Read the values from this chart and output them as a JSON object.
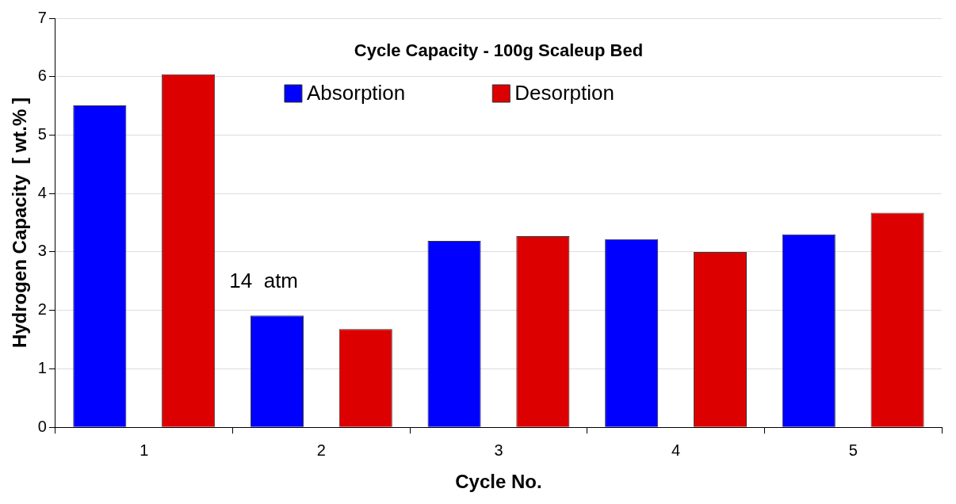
{
  "chart_data": {
    "type": "bar",
    "title": "Cycle Capacity - 100g Scaleup Bed",
    "xlabel": "Cycle No.",
    "ylabel": "Hydrogen Capacity  [ wt.% ]",
    "categories": [
      "1",
      "2",
      "3",
      "4",
      "5"
    ],
    "series": [
      {
        "name": "Absorption",
        "color": "#0000ff",
        "values": [
          5.51,
          1.91,
          3.19,
          3.22,
          3.3
        ]
      },
      {
        "name": "Desorption",
        "color": "#dd0000",
        "values": [
          6.04,
          1.68,
          3.27,
          3.0,
          3.67
        ]
      }
    ],
    "ylim": [
      0,
      7
    ],
    "yticks": [
      0,
      1,
      2,
      3,
      4,
      5,
      6,
      7
    ],
    "grid": "y",
    "legend": "top",
    "annotations": [
      "14  atm"
    ]
  }
}
